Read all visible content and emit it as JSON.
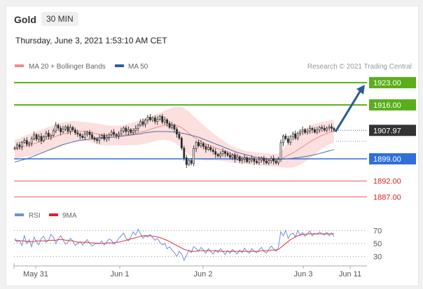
{
  "header": {
    "title": "Gold",
    "timeframe": "30 MIN",
    "datetime": "Thursday, June 3, 2021 1:53:10 AM CET"
  },
  "legend": {
    "ma20_label": "MA 20 + Bollinger Bands",
    "ma50_label": "MA 50",
    "research": "Research © 2021 Trading Central",
    "rsi_label": "RSI",
    "ma9_label": "9MA"
  },
  "colors": {
    "green": "#5aae1b",
    "blue": "#2f6fd8",
    "red": "#d22",
    "candle": "#2b2b2b",
    "band_fill": "#fbd9d9",
    "ma20": "#f08a8a",
    "ma50": "#4a6fa8",
    "arrow": "#2a5a9a",
    "rsi": "#6f8fdf",
    "ma9": "#d33",
    "price_tag": "#333333"
  },
  "chart_data": [
    {
      "type": "line",
      "title": "Gold 30 MIN",
      "x_ticks": [
        "May 31",
        "Jun 1",
        "Jun 2",
        "Jun 3",
        "Jun 11"
      ],
      "y_range": [
        1884,
        1927
      ],
      "current_price": "1907.97",
      "levels": [
        {
          "value": 1923.0,
          "label": "1923.00",
          "kind": "resistance"
        },
        {
          "value": 1916.0,
          "label": "1916.00",
          "kind": "resistance"
        },
        {
          "value": 1899.0,
          "label": "1899.00",
          "kind": "pivot"
        },
        {
          "value": 1892.0,
          "label": "1892.00",
          "kind": "support"
        },
        {
          "value": 1887.0,
          "label": "1887.00",
          "kind": "support"
        }
      ],
      "series": [
        {
          "name": "MA 20 + Bollinger Bands"
        },
        {
          "name": "MA 50"
        }
      ],
      "close": [
        1902.5,
        1903.4,
        1902.8,
        1904.2,
        1904.8,
        1903.6,
        1904.0,
        1905.3,
        1906.6,
        1905.2,
        1906.1,
        1904.7,
        1905.9,
        1907.1,
        1906.0,
        1906.4,
        1907.8,
        1909.6,
        1908.7,
        1907.5,
        1908.4,
        1909.1,
        1907.7,
        1908.9,
        1908.1,
        1907.2,
        1906.8,
        1906.2,
        1905.7,
        1906.9,
        1907.4,
        1906.6,
        1905.6,
        1905.1,
        1904.8,
        1905.7,
        1906.4,
        1905.2,
        1905.8,
        1906.6,
        1907.4,
        1906.7,
        1906.3,
        1906.9,
        1907.8,
        1908.7,
        1907.6,
        1908.2,
        1907.3,
        1907.9,
        1908.6,
        1909.6,
        1910.7,
        1909.8,
        1911.2,
        1912.1,
        1911.3,
        1911.9,
        1910.8,
        1911.5,
        1912.4,
        1910.6,
        1911.3,
        1910.2,
        1908.9,
        1909.6,
        1908.3,
        1906.8,
        1905.5,
        1902.4,
        1899.3,
        1897.2,
        1898.5,
        1897.6,
        1902.2,
        1904.2,
        1903.1,
        1903.8,
        1902.9,
        1902.0,
        1902.6,
        1901.8,
        1901.3,
        1900.4,
        1899.9,
        1900.6,
        1901.3,
        1900.7,
        1900.1,
        1899.5,
        1900.2,
        1898.9,
        1899.6,
        1898.4,
        1898.9,
        1899.3,
        1898.1,
        1898.7,
        1899.1,
        1898.2,
        1897.8,
        1898.7,
        1899.2,
        1898.3,
        1897.7,
        1898.4,
        1899.1,
        1898.3,
        1897.7,
        1898.9,
        1904.1,
        1906.2,
        1905.3,
        1904.2,
        1906.0,
        1906.9,
        1905.5,
        1907.1,
        1907.6,
        1908.2,
        1907.3,
        1907.8,
        1908.6,
        1908.2,
        1907.4,
        1908.1,
        1908.9,
        1908.6,
        1908.0,
        1908.7,
        1909.1,
        1908.6,
        1908.0
      ],
      "ma20": [
        1902.0,
        1902.2,
        1902.4,
        1902.6,
        1902.9,
        1903.1,
        1903.3,
        1903.5,
        1903.8,
        1904.0,
        1904.3,
        1904.6,
        1904.8,
        1905.1,
        1905.3,
        1905.5,
        1905.8,
        1906.1,
        1906.4,
        1906.6,
        1906.8,
        1907.0,
        1907.2,
        1907.4,
        1907.6,
        1907.7,
        1907.7,
        1907.7,
        1907.6,
        1907.6,
        1907.5,
        1907.4,
        1907.2,
        1907.0,
        1906.9,
        1906.7,
        1906.6,
        1906.5,
        1906.4,
        1906.3,
        1906.3,
        1906.3,
        1906.3,
        1906.3,
        1906.4,
        1906.5,
        1906.6,
        1906.7,
        1906.8,
        1906.9,
        1907.0,
        1907.2,
        1907.4,
        1907.6,
        1907.8,
        1908.0,
        1908.3,
        1908.5,
        1908.8,
        1909.0,
        1909.2,
        1909.4,
        1909.6,
        1909.7,
        1909.8,
        1909.8,
        1909.7,
        1909.5,
        1909.2,
        1908.8,
        1908.3,
        1907.7,
        1907.1,
        1906.4,
        1905.9,
        1905.4,
        1904.9,
        1904.5,
        1904.1,
        1903.7,
        1903.4,
        1903.1,
        1902.8,
        1902.5,
        1902.2,
        1901.9,
        1901.6,
        1901.3,
        1901.0,
        1900.7,
        1900.4,
        1900.2,
        1900.0,
        1899.8,
        1899.6,
        1899.5,
        1899.4,
        1899.3,
        1899.2,
        1899.1,
        1899.0,
        1898.9,
        1898.9,
        1898.8,
        1898.7,
        1898.7,
        1898.6,
        1898.6,
        1898.6,
        1898.6,
        1898.9,
        1899.3,
        1899.7,
        1900.1,
        1900.5,
        1900.9,
        1901.3,
        1901.8,
        1902.3,
        1902.8,
        1903.3,
        1903.8,
        1904.3,
        1904.8,
        1905.2,
        1905.6,
        1906.0,
        1906.4,
        1906.7,
        1907.0,
        1907.3,
        1907.5,
        1907.6
      ],
      "band_width": [
        3.0,
        3.0,
        3.0,
        3.2,
        3.3,
        3.4,
        3.5,
        3.5,
        3.6,
        3.6,
        3.6,
        3.6,
        3.6,
        3.7,
        3.7,
        3.7,
        3.8,
        3.8,
        3.8,
        3.8,
        3.7,
        3.6,
        3.5,
        3.4,
        3.3,
        3.2,
        3.1,
        3.0,
        3.0,
        3.0,
        3.0,
        3.0,
        3.1,
        3.2,
        3.3,
        3.3,
        3.3,
        3.2,
        3.2,
        3.1,
        3.1,
        3.1,
        3.1,
        3.1,
        3.2,
        3.2,
        3.3,
        3.4,
        3.5,
        3.6,
        3.7,
        3.8,
        3.9,
        4.0,
        4.0,
        4.1,
        4.1,
        4.1,
        4.2,
        4.2,
        4.3,
        4.4,
        4.6,
        4.8,
        5.0,
        5.3,
        5.6,
        5.9,
        6.2,
        6.5,
        6.7,
        6.8,
        6.8,
        6.7,
        6.5,
        6.3,
        6.1,
        5.8,
        5.5,
        5.2,
        4.9,
        4.6,
        4.3,
        4.0,
        3.7,
        3.5,
        3.3,
        3.1,
        2.9,
        2.7,
        2.6,
        2.5,
        2.4,
        2.3,
        2.2,
        2.1,
        2.0,
        2.0,
        2.0,
        2.0,
        2.0,
        2.0,
        2.0,
        2.0,
        2.0,
        2.0,
        2.0,
        2.0,
        2.0,
        2.1,
        2.5,
        3.0,
        3.5,
        3.9,
        4.3,
        4.6,
        4.8,
        5.0,
        5.1,
        5.2,
        5.2,
        5.2,
        5.1,
        5.0,
        4.8,
        4.6,
        4.4,
        4.2,
        4.0,
        3.9,
        3.8,
        3.7,
        3.6
      ],
      "ma50": [
        1898.0,
        1898.2,
        1898.4,
        1898.6,
        1898.8,
        1899.0,
        1899.3,
        1899.6,
        1899.9,
        1900.2,
        1900.5,
        1900.8,
        1901.1,
        1901.4,
        1901.7,
        1902.0,
        1902.3,
        1902.6,
        1902.9,
        1903.2,
        1903.5,
        1903.7,
        1903.9,
        1904.1,
        1904.3,
        1904.5,
        1904.7,
        1904.8,
        1904.9,
        1905.0,
        1905.1,
        1905.2,
        1905.3,
        1905.4,
        1905.4,
        1905.5,
        1905.5,
        1905.6,
        1905.6,
        1905.7,
        1905.8,
        1905.8,
        1905.9,
        1906.0,
        1906.1,
        1906.2,
        1906.3,
        1906.4,
        1906.5,
        1906.6,
        1906.7,
        1906.8,
        1906.9,
        1907.1,
        1907.2,
        1907.3,
        1907.4,
        1907.5,
        1907.6,
        1907.6,
        1907.6,
        1907.6,
        1907.6,
        1907.6,
        1907.5,
        1907.5,
        1907.4,
        1907.3,
        1907.2,
        1907.1,
        1907.0,
        1906.8,
        1906.6,
        1906.4,
        1906.2,
        1906.0,
        1905.8,
        1905.5,
        1905.2,
        1904.9,
        1904.6,
        1904.3,
        1904.0,
        1903.7,
        1903.4,
        1903.1,
        1902.8,
        1902.5,
        1902.2,
        1901.9,
        1901.6,
        1901.3,
        1901.0,
        1900.8,
        1900.6,
        1900.4,
        1900.2,
        1900.0,
        1899.8,
        1899.6,
        1899.5,
        1899.4,
        1899.3,
        1899.2,
        1899.1,
        1899.0,
        1899.0,
        1898.9,
        1898.9,
        1898.9,
        1898.9,
        1898.9,
        1899.0,
        1899.0,
        1899.1,
        1899.2,
        1899.3,
        1899.4,
        1899.5,
        1899.6,
        1899.7,
        1899.8,
        1900.0,
        1900.1,
        1900.3,
        1900.5,
        1900.7,
        1900.9,
        1901.1,
        1901.3,
        1901.5,
        1901.7,
        1901.9
      ],
      "forecast_target": 1923.0
    },
    {
      "type": "line",
      "title": "RSI",
      "y_ticks": [
        70,
        50,
        30
      ],
      "y_range": [
        22,
        78
      ],
      "series": [
        {
          "name": "RSI",
          "values": [
            58,
            52,
            55,
            47,
            62,
            50,
            56,
            45,
            60,
            53,
            48,
            58,
            61,
            52,
            55,
            64,
            60,
            50,
            57,
            62,
            55,
            49,
            52,
            58,
            54,
            47,
            50,
            53,
            48,
            52,
            56,
            50,
            46,
            49,
            51,
            50,
            54,
            48,
            52,
            57,
            55,
            49,
            52,
            58,
            62,
            66,
            58,
            54,
            60,
            68,
            63,
            72,
            65,
            58,
            62,
            60,
            64,
            59,
            55,
            58,
            52,
            48,
            50,
            42,
            45,
            40,
            36,
            30,
            38,
            34,
            24,
            32,
            40,
            36,
            45,
            42,
            38,
            44,
            40,
            35,
            42,
            38,
            34,
            40,
            36,
            42,
            38,
            33,
            39,
            35,
            41,
            37,
            34,
            40,
            36,
            43,
            38,
            35,
            42,
            38,
            36,
            40,
            44,
            38,
            35,
            41,
            46,
            42,
            38,
            44,
            68,
            62,
            70,
            58,
            64,
            66,
            60,
            70,
            63,
            67,
            61,
            65,
            69,
            62,
            66,
            64,
            68,
            65,
            63,
            67,
            62,
            66,
            61
          ]
        },
        {
          "name": "9MA",
          "values": [
            55,
            55,
            54,
            54,
            54,
            53,
            53,
            53,
            53,
            54,
            54,
            54,
            54,
            54,
            55,
            55,
            55,
            55,
            56,
            56,
            56,
            55,
            55,
            54,
            54,
            53,
            52,
            52,
            52,
            52,
            52,
            51,
            51,
            51,
            50,
            50,
            50,
            50,
            51,
            51,
            51,
            51,
            52,
            52,
            53,
            54,
            55,
            56,
            57,
            58,
            59,
            60,
            61,
            62,
            62,
            62,
            62,
            61,
            61,
            60,
            59,
            58,
            56,
            55,
            53,
            51,
            49,
            47,
            45,
            43,
            41,
            40,
            39,
            38,
            38,
            38,
            39,
            39,
            39,
            39,
            39,
            39,
            39,
            39,
            39,
            38,
            38,
            38,
            38,
            38,
            38,
            38,
            38,
            38,
            38,
            38,
            38,
            38,
            38,
            38,
            38,
            38,
            39,
            39,
            39,
            39,
            40,
            40,
            40,
            41,
            44,
            47,
            50,
            53,
            56,
            58,
            60,
            62,
            63,
            64,
            64,
            65,
            65,
            65,
            65,
            65,
            65,
            65,
            65,
            65,
            65,
            65,
            65
          ]
        }
      ]
    }
  ]
}
